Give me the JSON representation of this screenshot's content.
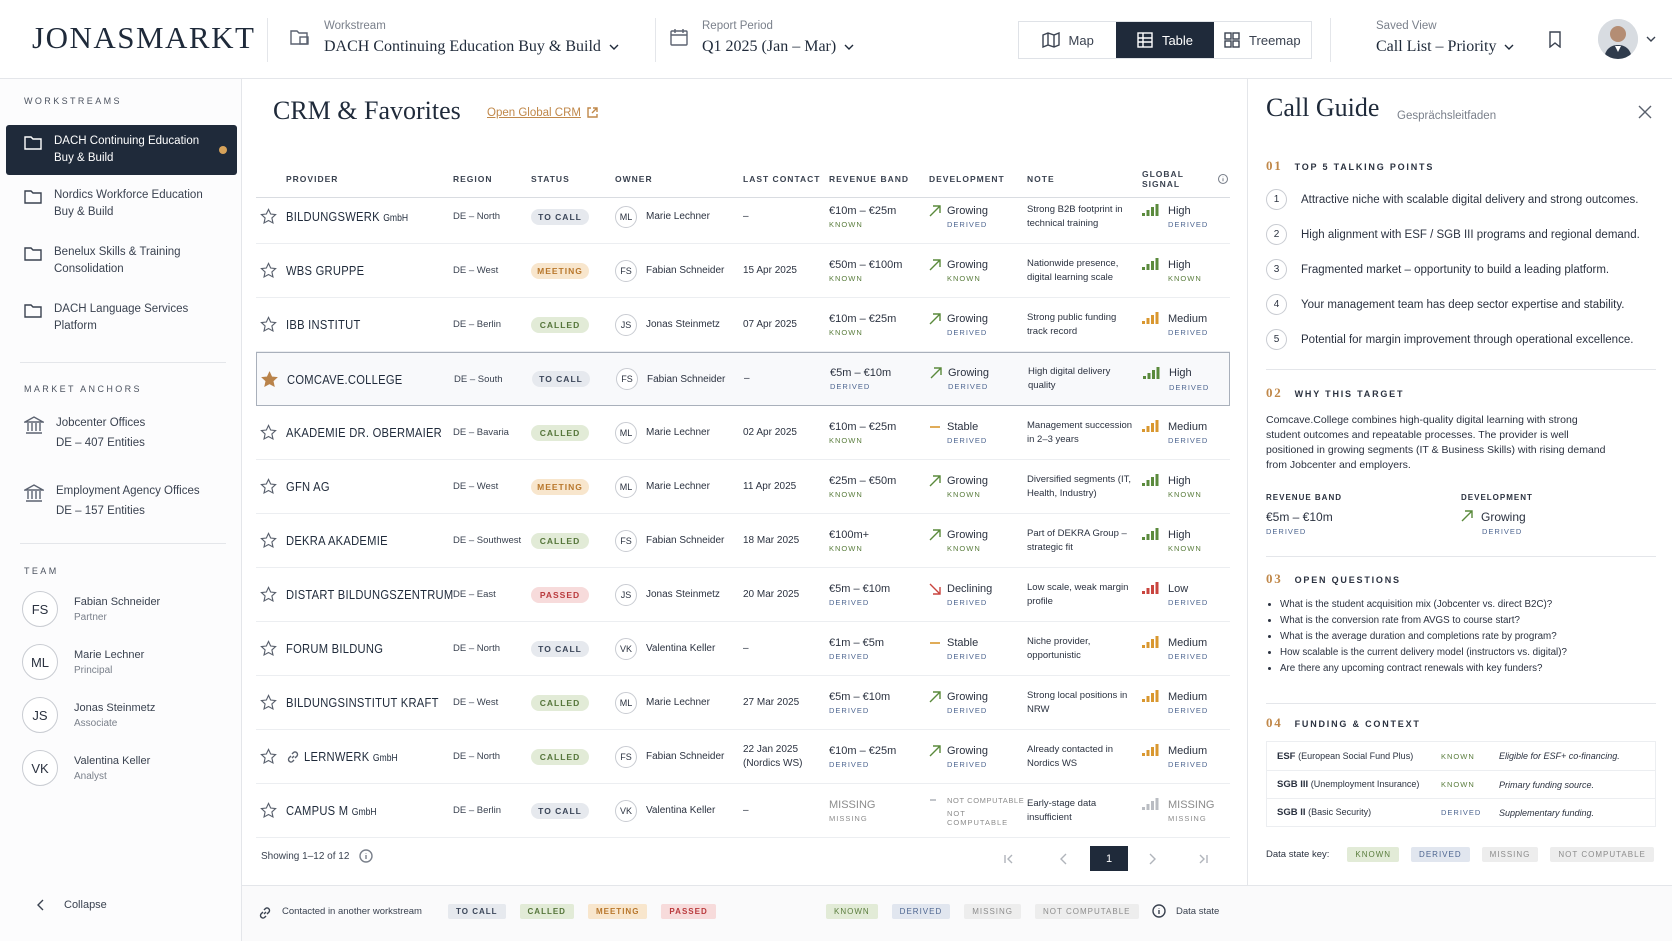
{
  "header": {
    "brand": "JONASMARKT",
    "workstream_label": "Workstream",
    "workstream": "DACH Continuing Education Buy & Build",
    "period_label": "Report Period",
    "period": "Q1 2025 (Jan – Mar)",
    "views": [
      "Map",
      "Table",
      "Treemap"
    ],
    "saved_view_label": "Saved View",
    "saved_view": "Call List – Priority"
  },
  "sidebar": {
    "workstreams_title": "WORKSTREAMS",
    "workstreams": [
      "DACH Continuing Education Buy & Build",
      "Nordics Workforce Education Buy & Build",
      "Benelux Skills & Training Consolidation",
      "DACH Language Services Platform"
    ],
    "market_anchors_title": "MARKET ANCHORS",
    "market_anchors": [
      {
        "name": "Jobcenter Offices",
        "detail": "DE – 407 Entities"
      },
      {
        "name": "Employment Agency Offices",
        "detail": "DE – 157 Entities"
      }
    ],
    "team_title": "TEAM",
    "team": [
      {
        "initials": "FS",
        "name": "Fabian Schneider",
        "role": "Partner"
      },
      {
        "initials": "ML",
        "name": "Marie Lechner",
        "role": "Principal"
      },
      {
        "initials": "JS",
        "name": "Jonas Steinmetz",
        "role": "Associate"
      },
      {
        "initials": "VK",
        "name": "Valentina Keller",
        "role": "Analyst"
      }
    ],
    "collapse": "Collapse"
  },
  "main": {
    "title": "CRM & Favorites",
    "link": "Open Global CRM",
    "columns": [
      "PROVIDER",
      "REGION",
      "STATUS",
      "OWNER",
      "LAST CONTACT",
      "REVENUE BAND",
      "DEVELOPMENT",
      "NOTE",
      "GLOBAL SIGNAL"
    ],
    "rows": [
      {
        "provider": "BILDUNGSWERK",
        "provider_suffix": "GmbH",
        "region": "DE – North",
        "status": "TO CALL",
        "owner_initials": "ML",
        "owner": "Marie Lechner",
        "last_contact": "–",
        "revenue": "€10m – €25m",
        "revenue_state": "KNOWN",
        "trend": "up",
        "development": "Growing",
        "development_state": "DERIVED",
        "note": "Strong B2B footprint in technical training",
        "signal": "High",
        "signal_state": "DERIVED",
        "signal_color": "#5a8a3c"
      },
      {
        "provider": "WBS GRUPPE",
        "region": "DE – West",
        "status": "MEETING",
        "owner_initials": "FS",
        "owner": "Fabian Schneider",
        "last_contact": "15 Apr 2025",
        "revenue": "€50m – €100m",
        "revenue_state": "KNOWN",
        "trend": "up",
        "development": "Growing",
        "development_state": "KNOWN",
        "note": "Nationwide presence, digital learning scale",
        "signal": "High",
        "signal_state": "KNOWN",
        "signal_color": "#5a8a3c"
      },
      {
        "provider": "IBB INSTITUT",
        "region": "DE – Berlin",
        "status": "CALLED",
        "owner_initials": "JS",
        "owner": "Jonas Steinmetz",
        "last_contact": "07 Apr 2025",
        "revenue": "€10m – €25m",
        "revenue_state": "KNOWN",
        "trend": "up",
        "development": "Growing",
        "development_state": "DERIVED",
        "note": "Strong public funding track record",
        "signal": "Medium",
        "signal_state": "DERIVED",
        "signal_color": "#d9972f"
      },
      {
        "provider": "COMCAVE.COLLEGE",
        "favorite": true,
        "region": "DE – South",
        "status": "TO CALL",
        "owner_initials": "FS",
        "owner": "Fabian Schneider",
        "last_contact": "–",
        "revenue": "€5m – €10m",
        "revenue_state": "DERIVED",
        "trend": "up",
        "development": "Growing",
        "development_state": "DERIVED",
        "note": "High digital delivery quality",
        "signal": "High",
        "signal_state": "DERIVED",
        "signal_color": "#5a8a3c"
      },
      {
        "provider": "AKADEMIE DR. OBERMAIER",
        "region": "DE – Bavaria",
        "status": "CALLED",
        "owner_initials": "ML",
        "owner": "Marie Lechner",
        "last_contact": "02 Apr 2025",
        "revenue": "€10m – €25m",
        "revenue_state": "KNOWN",
        "trend": "flat",
        "development": "Stable",
        "development_state": "DERIVED",
        "note": "Management succession in 2–3 years",
        "signal": "Medium",
        "signal_state": "DERIVED",
        "signal_color": "#d9972f"
      },
      {
        "provider": "GFN AG",
        "region": "DE – West",
        "status": "MEETING",
        "owner_initials": "ML",
        "owner": "Marie Lechner",
        "last_contact": "11 Apr 2025",
        "revenue": "€25m – €50m",
        "revenue_state": "KNOWN",
        "trend": "up",
        "development": "Growing",
        "development_state": "KNOWN",
        "note": "Diversified segments (IT, Health, Industry)",
        "signal": "High",
        "signal_state": "KNOWN",
        "signal_color": "#5a8a3c"
      },
      {
        "provider": "DEKRA AKADEMIE",
        "region": "DE – Southwest",
        "status": "CALLED",
        "owner_initials": "FS",
        "owner": "Fabian Schneider",
        "last_contact": "18 Mar 2025",
        "revenue": "€100m+",
        "revenue_state": "KNOWN",
        "trend": "up",
        "development": "Growing",
        "development_state": "KNOWN",
        "note": "Part of DEKRA Group – strategic fit",
        "signal": "High",
        "signal_state": "KNOWN",
        "signal_color": "#5a8a3c"
      },
      {
        "provider": "DISTART BILDUNGSZENTRUM",
        "region": "DE – East",
        "status": "PASSED",
        "owner_initials": "JS",
        "owner": "Jonas Steinmetz",
        "last_contact": "20 Mar 2025",
        "revenue": "€5m – €10m",
        "revenue_state": "DERIVED",
        "trend": "down",
        "development": "Declining",
        "development_state": "DERIVED",
        "note": "Low scale, weak margin profile",
        "signal": "Low",
        "signal_state": "DERIVED",
        "signal_color": "#c9443e"
      },
      {
        "provider": "FORUM BILDUNG",
        "region": "DE – North",
        "status": "TO CALL",
        "owner_initials": "VK",
        "owner": "Valentina Keller",
        "last_contact": "–",
        "revenue": "€1m – €5m",
        "revenue_state": "DERIVED",
        "trend": "flat",
        "development": "Stable",
        "development_state": "DERIVED",
        "note": "Niche provider, opportunistic",
        "signal": "Medium",
        "signal_state": "DERIVED",
        "signal_color": "#d9972f"
      },
      {
        "provider": "BILDUNGSINSTITUT KRAFT",
        "region": "DE – West",
        "status": "CALLED",
        "owner_initials": "ML",
        "owner": "Marie Lechner",
        "last_contact": "27 Mar 2025",
        "revenue": "€5m – €10m",
        "revenue_state": "DERIVED",
        "trend": "up",
        "development": "Growing",
        "development_state": "DERIVED",
        "note": "Strong local positions in NRW",
        "signal": "Medium",
        "signal_state": "DERIVED",
        "signal_color": "#d9972f"
      },
      {
        "provider": "LERNWERK",
        "provider_suffix": "GmbH",
        "linked": true,
        "region": "DE – North",
        "status": "CALLED",
        "owner_initials": "FS",
        "owner": "Fabian Schneider",
        "last_contact": "22 Jan 2025 (Nordics WS)",
        "revenue": "€10m – €25m",
        "revenue_state": "DERIVED",
        "trend": "up",
        "development": "Growing",
        "development_state": "DERIVED",
        "note": "Already contacted in Nordics WS",
        "signal": "Medium",
        "signal_state": "DERIVED",
        "signal_color": "#d9972f"
      },
      {
        "provider": "CAMPUS M",
        "provider_suffix": "GmbH",
        "region": "DE – Berlin",
        "status": "TO CALL",
        "owner_initials": "VK",
        "owner": "Valentina Keller",
        "last_contact": "–",
        "revenue": "MISSING",
        "revenue_state": "MISSING",
        "trend": "none",
        "development": "NOT COMPUTABLE",
        "development_state": "NOT COMPUTABLE",
        "note": "Early-stage data insufficient",
        "signal": "MISSING",
        "signal_state": "MISSING",
        "signal_color": "#b9bcc2"
      }
    ],
    "showing": "Showing 1–12 of 12",
    "page": "1"
  },
  "call_guide": {
    "title": "Call Guide",
    "subtitle": "Gesprächsleitfaden",
    "talking_points": {
      "number": "01",
      "title": "TOP 5 TALKING POINTS",
      "items": [
        {
          "n": "1",
          "text": "Attractive niche with scalable digital delivery and strong outcomes."
        },
        {
          "n": "2",
          "text": "High alignment with ESF / SGB III programs and regional demand."
        },
        {
          "n": "3",
          "text": "Fragmented market – opportunity to build a leading platform."
        },
        {
          "n": "4",
          "text": "Your management team has deep sector expertise and stability."
        },
        {
          "n": "5",
          "text": "Potential for margin improvement through operational excellence."
        }
      ]
    },
    "why_target": {
      "number": "02",
      "title": "WHY THIS TARGET",
      "text": "Comcave.College combines high-quality digital learning with strong student outcomes and repeatable processes. The provider is well positioned in growing segments (IT & Business Skills) with rising demand from Jobcenter and employers.",
      "metrics": [
        {
          "label": "REVENUE BAND",
          "value": "€5m – €10m",
          "state": "DERIVED"
        },
        {
          "label": "DEVELOPMENT",
          "value": "Growing",
          "state": "DERIVED"
        }
      ]
    },
    "open_questions": {
      "number": "03",
      "title": "OPEN QUESTIONS",
      "items": [
        "What is the student acquisition mix (Jobcenter vs. direct B2C)?",
        "What is the conversion rate from AVGS to course start?",
        "What is the average duration and completions rate by program?",
        "How scalable is the current delivery model (instructors vs. digital)?",
        "Are there any upcoming contract renewals with key funders?"
      ]
    },
    "funding": {
      "number": "04",
      "title": "FUNDING & CONTEXT",
      "rows": [
        {
          "term": "ESF",
          "detail": "(European Social Fund Plus)",
          "state": "KNOWN",
          "note": "Eligible for ESF+ co-financing."
        },
        {
          "term": "SGB III",
          "detail": "(Unemployment Insurance)",
          "state": "KNOWN",
          "note": "Primary funding source."
        },
        {
          "term": "SGB II",
          "detail": "(Basic Security)",
          "state": "DERIVED",
          "note": "Supplementary funding."
        }
      ]
    },
    "data_state_key": "Data state key:"
  },
  "legend": {
    "contacted": "Contacted in another workstream",
    "statuses": [
      {
        "label": "TO CALL",
        "bg": "#e6e9ee",
        "color": "#3a4558"
      },
      {
        "label": "CALLED",
        "bg": "#e2ebd7",
        "color": "#55753a"
      },
      {
        "label": "MEETING",
        "bg": "#f8e6cd",
        "color": "#b8772c"
      },
      {
        "label": "PASSED",
        "bg": "#f7dbdb",
        "color": "#b93a3d"
      }
    ],
    "states": [
      {
        "label": "KNOWN",
        "bg": "#e2ebd7",
        "color": "#5a7d3d"
      },
      {
        "label": "DERIVED",
        "bg": "#e1e6ef",
        "color": "#4d6590"
      },
      {
        "label": "MISSING",
        "bg": "#ededed",
        "color": "#8c8c8c"
      },
      {
        "label": "NOT COMPUTABLE",
        "bg": "#ededed",
        "color": "#8c8c8c"
      }
    ],
    "data_state": "Data state"
  }
}
